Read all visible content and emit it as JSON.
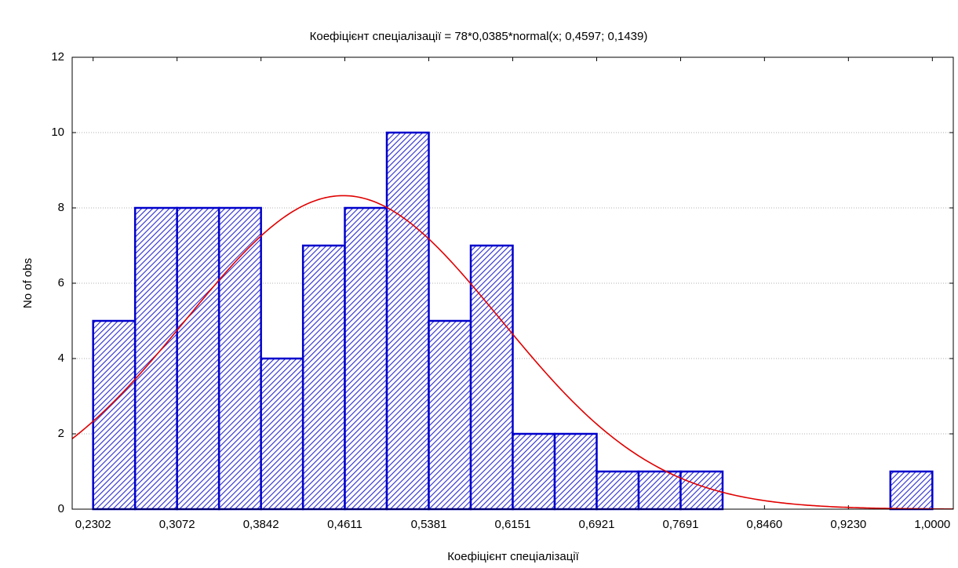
{
  "chart_data": {
    "type": "histogram",
    "title": "Коефіцієнт спеціалізації = 78*0,0385*normal(x; 0,4597; 0,1439)",
    "x_label": "Коефіцієнт спеціалізації",
    "y_label": "No of obs",
    "bins": [
      0.2302,
      0.2687,
      0.3072,
      0.3457,
      0.3842,
      0.4227,
      0.4611,
      0.4996,
      0.5381,
      0.5766,
      0.6151,
      0.6536,
      0.6921,
      0.7306,
      0.7691,
      0.8076,
      0.846,
      0.8845,
      0.923,
      0.9615,
      1.0
    ],
    "values": [
      5,
      8,
      8,
      8,
      4,
      7,
      8,
      10,
      5,
      7,
      2,
      2,
      1,
      1,
      1,
      0,
      0,
      0,
      0,
      1
    ],
    "color": "#0000cc",
    "fit": {
      "n": 78,
      "bin_width": 0.0385,
      "mean": 0.4597,
      "sd": 0.1439,
      "color": "#e00000"
    },
    "xlim": [
      0.211,
      1.0192
    ],
    "ylim": [
      0,
      12
    ],
    "xticks": [
      {
        "value": 0.2302,
        "label": "0,2302"
      },
      {
        "value": 0.3072,
        "label": "0,3072"
      },
      {
        "value": 0.3842,
        "label": "0,3842"
      },
      {
        "value": 0.4611,
        "label": "0,4611"
      },
      {
        "value": 0.5381,
        "label": "0,5381"
      },
      {
        "value": 0.6151,
        "label": "0,6151"
      },
      {
        "value": 0.6921,
        "label": "0,6921"
      },
      {
        "value": 0.7691,
        "label": "0,7691"
      },
      {
        "value": 0.846,
        "label": "0,8460"
      },
      {
        "value": 0.923,
        "label": "0,9230"
      },
      {
        "value": 1.0,
        "label": "1,0000"
      }
    ],
    "yticks": [
      0,
      2,
      4,
      6,
      8,
      10,
      12
    ],
    "grid": true
  }
}
